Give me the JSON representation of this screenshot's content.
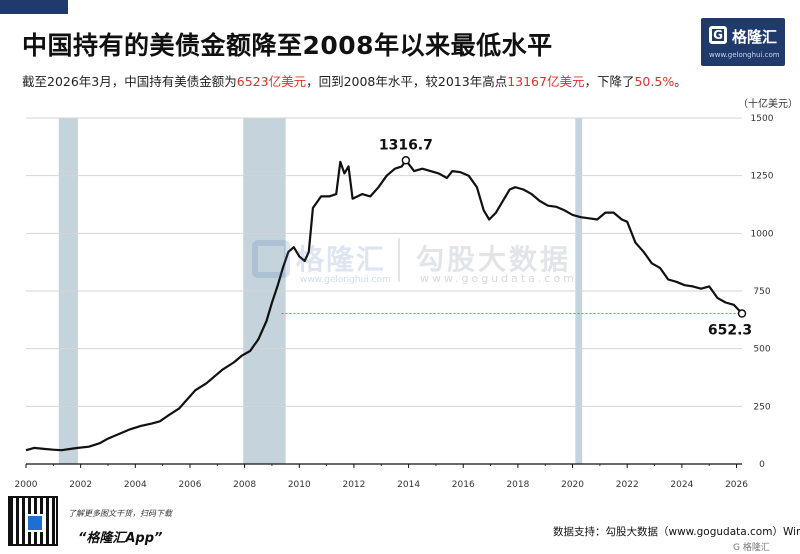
{
  "header": {
    "title": "中国持有的美债金额降至2008年以来最低水平",
    "subtitle_parts": [
      {
        "text": "截至2026年3月，中国持有美债金额为",
        "highlight": false
      },
      {
        "text": "6523亿美元",
        "highlight": true
      },
      {
        "text": "，回到2008年水平，较2013年高点",
        "highlight": false
      },
      {
        "text": "13167亿美元",
        "highlight": true
      },
      {
        "text": "，下降了",
        "highlight": false
      },
      {
        "text": "50.5%",
        "highlight": true
      },
      {
        "text": "。",
        "highlight": false
      }
    ]
  },
  "logo": {
    "mark": "G",
    "name": "格隆汇",
    "url": "www.gelonghui.com"
  },
  "watermark": {
    "name1": "格隆汇",
    "url1": "www.gelonghui.com",
    "name2": "勾股大数据",
    "url2": "www.gogudata.com"
  },
  "footer": {
    "hint": "了解更多图文干货，扫码下载",
    "app": "“格隆汇App”",
    "source": "数据支持：勾股大数据（www.gogudata.com）Wind",
    "corner": "G 格隆汇"
  },
  "colors": {
    "line": "#111111",
    "shade": "#c5d3dd",
    "grid": "#d4d4d4",
    "reference_line": "#e0302e",
    "highlight": "#e0302e",
    "brand": "#1f3a6b"
  },
  "chart_data": {
    "type": "line",
    "title": "中国持有的美债金额降至2008年以来最低水平",
    "ylabel": "（十亿美元）",
    "xlabel": "",
    "xlim": [
      2000,
      2026.2
    ],
    "ylim": [
      0,
      1500
    ],
    "x_ticks": [
      2000,
      2002,
      2004,
      2006,
      2008,
      2010,
      2012,
      2014,
      2016,
      2018,
      2020,
      2022,
      2024,
      2026
    ],
    "y_ticks": [
      0,
      250,
      500,
      750,
      1000,
      1250,
      1500
    ],
    "y_axis_side": "right",
    "grid": "horizontal",
    "legend": "none",
    "shaded_periods": [
      [
        2001.2,
        2001.9
      ],
      [
        2007.95,
        2009.5
      ],
      [
        2020.1,
        2020.35
      ]
    ],
    "reference_line": {
      "y": 652.3,
      "style": "dashed"
    },
    "annotations": [
      {
        "label": "1316.7",
        "x": 2013.9,
        "y": 1316.7
      },
      {
        "label": "652.3",
        "x": 2026.2,
        "y": 652.3
      }
    ],
    "series": [
      {
        "values": [
          [
            2000.0,
            60
          ],
          [
            2000.3,
            70
          ],
          [
            2000.7,
            65
          ],
          [
            2001.0,
            62
          ],
          [
            2001.3,
            60
          ],
          [
            2001.6,
            65
          ],
          [
            2001.9,
            70
          ],
          [
            2002.3,
            75
          ],
          [
            2002.7,
            90
          ],
          [
            2003.0,
            110
          ],
          [
            2003.4,
            130
          ],
          [
            2003.8,
            150
          ],
          [
            2004.2,
            165
          ],
          [
            2004.6,
            175
          ],
          [
            2004.9,
            185
          ],
          [
            2005.2,
            210
          ],
          [
            2005.6,
            240
          ],
          [
            2005.9,
            280
          ],
          [
            2006.2,
            320
          ],
          [
            2006.6,
            350
          ],
          [
            2006.9,
            380
          ],
          [
            2007.2,
            410
          ],
          [
            2007.6,
            440
          ],
          [
            2007.9,
            470
          ],
          [
            2008.2,
            490
          ],
          [
            2008.5,
            540
          ],
          [
            2008.8,
            620
          ],
          [
            2009.0,
            700
          ],
          [
            2009.2,
            770
          ],
          [
            2009.4,
            850
          ],
          [
            2009.6,
            920
          ],
          [
            2009.8,
            940
          ],
          [
            2010.0,
            900
          ],
          [
            2010.2,
            880
          ],
          [
            2010.35,
            920
          ],
          [
            2010.5,
            1110
          ],
          [
            2010.8,
            1160
          ],
          [
            2011.1,
            1160
          ],
          [
            2011.35,
            1170
          ],
          [
            2011.5,
            1310
          ],
          [
            2011.65,
            1260
          ],
          [
            2011.8,
            1290
          ],
          [
            2011.95,
            1150
          ],
          [
            2012.3,
            1170
          ],
          [
            2012.6,
            1160
          ],
          [
            2012.9,
            1200
          ],
          [
            2013.2,
            1250
          ],
          [
            2013.5,
            1280
          ],
          [
            2013.75,
            1290
          ],
          [
            2013.9,
            1316.7
          ],
          [
            2014.2,
            1270
          ],
          [
            2014.5,
            1280
          ],
          [
            2014.8,
            1270
          ],
          [
            2015.1,
            1260
          ],
          [
            2015.4,
            1240
          ],
          [
            2015.6,
            1270
          ],
          [
            2015.9,
            1265
          ],
          [
            2016.2,
            1250
          ],
          [
            2016.5,
            1200
          ],
          [
            2016.75,
            1100
          ],
          [
            2016.95,
            1060
          ],
          [
            2017.2,
            1090
          ],
          [
            2017.5,
            1150
          ],
          [
            2017.7,
            1190
          ],
          [
            2017.9,
            1200
          ],
          [
            2018.2,
            1190
          ],
          [
            2018.5,
            1170
          ],
          [
            2018.8,
            1140
          ],
          [
            2019.1,
            1120
          ],
          [
            2019.4,
            1115
          ],
          [
            2019.7,
            1100
          ],
          [
            2020.0,
            1080
          ],
          [
            2020.3,
            1070
          ],
          [
            2020.6,
            1065
          ],
          [
            2020.9,
            1060
          ],
          [
            2021.2,
            1090
          ],
          [
            2021.5,
            1090
          ],
          [
            2021.8,
            1060
          ],
          [
            2022.0,
            1050
          ],
          [
            2022.3,
            960
          ],
          [
            2022.6,
            920
          ],
          [
            2022.9,
            870
          ],
          [
            2023.2,
            850
          ],
          [
            2023.5,
            800
          ],
          [
            2023.8,
            790
          ],
          [
            2024.1,
            775
          ],
          [
            2024.4,
            770
          ],
          [
            2024.7,
            760
          ],
          [
            2025.0,
            770
          ],
          [
            2025.3,
            720
          ],
          [
            2025.6,
            700
          ],
          [
            2025.9,
            690
          ],
          [
            2026.2,
            652.3
          ]
        ]
      }
    ]
  }
}
